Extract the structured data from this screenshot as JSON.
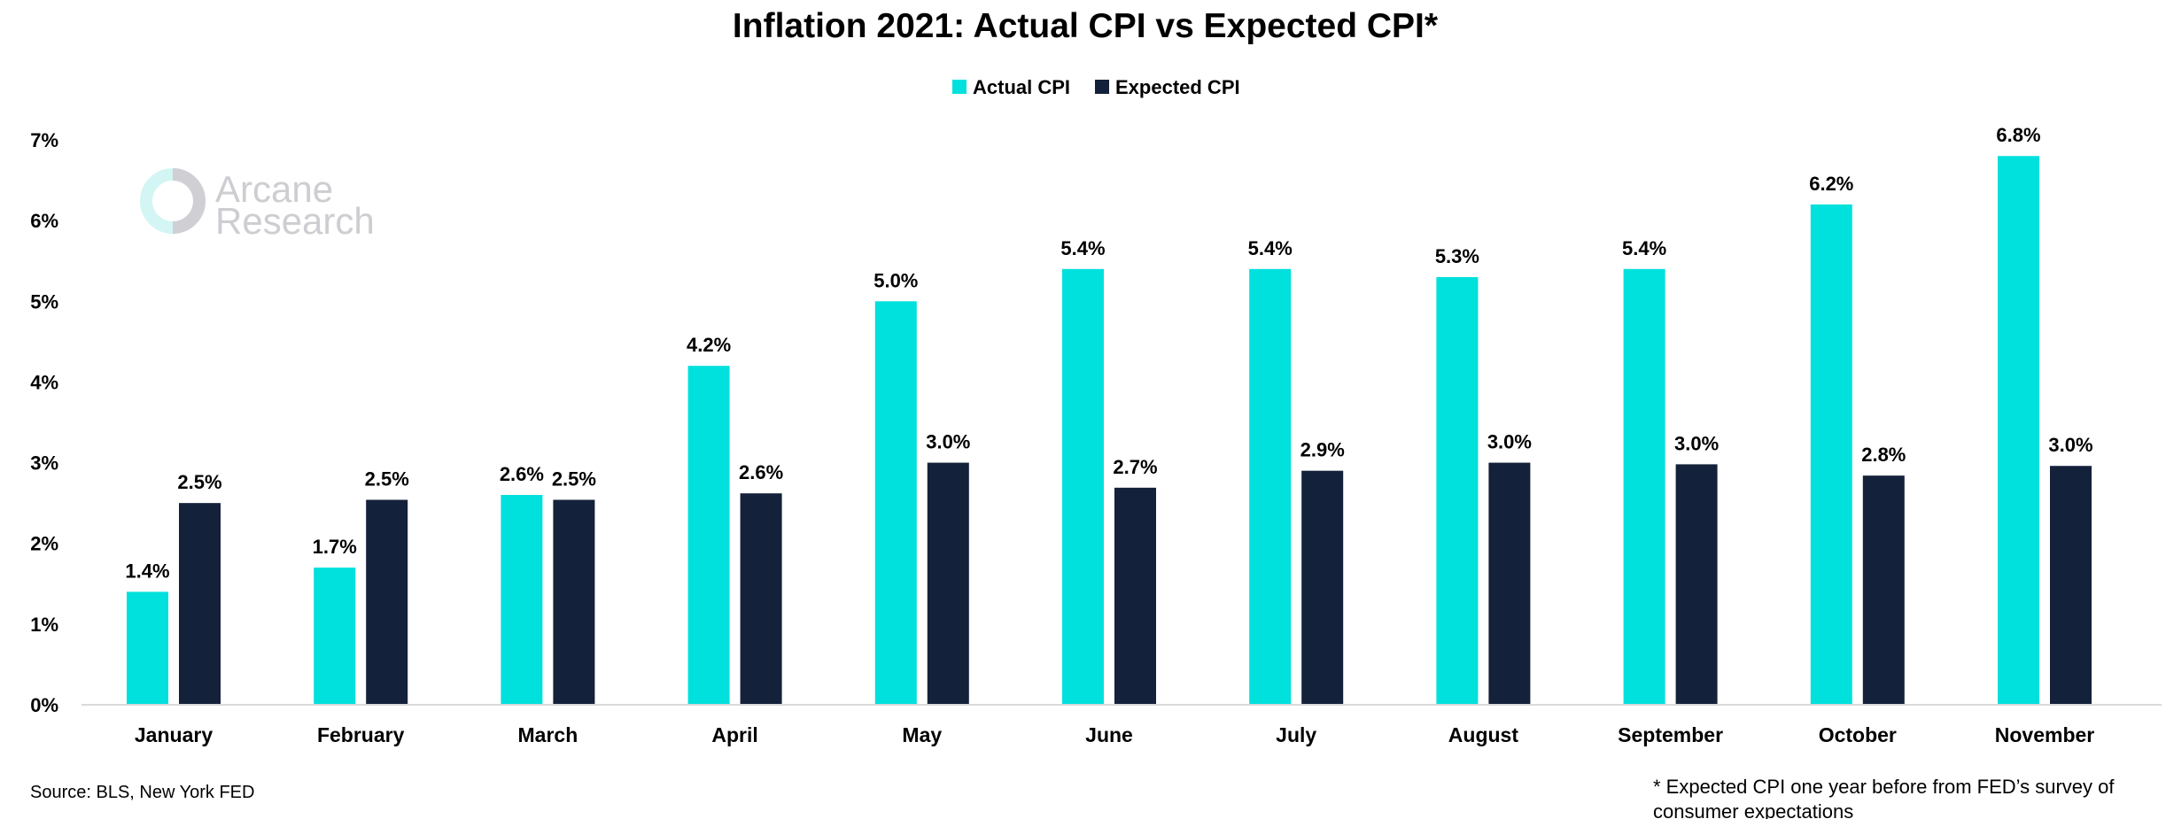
{
  "chart_data": {
    "type": "bar",
    "title": "Inflation 2021: Actual CPI vs Expected CPI*",
    "categories": [
      "January",
      "February",
      "March",
      "April",
      "May",
      "June",
      "July",
      "August",
      "September",
      "October",
      "November"
    ],
    "series": [
      {
        "name": "Actual CPI",
        "color": "#00E0DC",
        "values": [
          1.4,
          1.7,
          2.6,
          4.2,
          5.0,
          5.4,
          5.4,
          5.3,
          5.4,
          6.2,
          6.8
        ],
        "labels": [
          "1.4%",
          "1.7%",
          "2.6%",
          "4.2%",
          "5.0%",
          "5.4%",
          "5.4%",
          "5.3%",
          "5.4%",
          "6.2%",
          "6.8%"
        ]
      },
      {
        "name": "Expected CPI",
        "color": "#14213A",
        "values": [
          2.5,
          2.54,
          2.54,
          2.62,
          3.0,
          2.69,
          2.9,
          3.0,
          2.98,
          2.84,
          2.96
        ],
        "labels": [
          "2.5%",
          "2.5%",
          "2.5%",
          "2.6%",
          "3.0%",
          "2.7%",
          "2.9%",
          "3.0%",
          "3.0%",
          "2.8%",
          "3.0%"
        ]
      }
    ],
    "ylim": [
      0,
      7
    ],
    "yticks": [
      "0%",
      "1%",
      "2%",
      "3%",
      "4%",
      "5%",
      "6%",
      "7%"
    ],
    "legend_position": "top-center",
    "grid": false
  },
  "watermark": {
    "line1": "Arcane",
    "line2": "Research"
  },
  "footer": {
    "source": "Source: BLS, New York FED",
    "note_line1": "* Expected CPI one year before from FED’s survey of",
    "note_line2": "consumer expectations"
  }
}
